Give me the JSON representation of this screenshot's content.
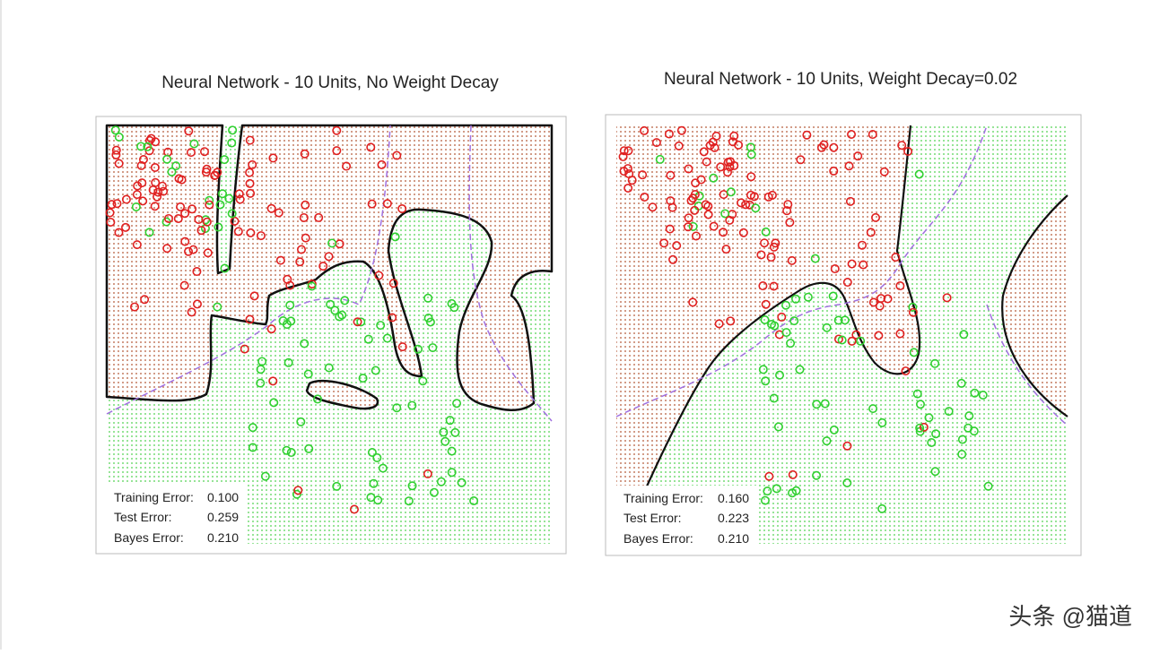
{
  "panels": [
    {
      "title": "Neural Network - 10 Units, No Weight Decay",
      "errors": [
        {
          "label": "Training Error:",
          "value": "0.100"
        },
        {
          "label": "Test Error:",
          "value": "0.259"
        },
        {
          "label": "Bayes Error:",
          "value": "0.210"
        }
      ]
    },
    {
      "title": "Neural Network - 10 Units, Weight Decay=0.02",
      "errors": [
        {
          "label": "Training Error:",
          "value": "0.160"
        },
        {
          "label": "Test Error:",
          "value": "0.223"
        },
        {
          "label": "Bayes Error:",
          "value": "0.210"
        }
      ]
    }
  ],
  "watermark": "头条 @猫道"
}
